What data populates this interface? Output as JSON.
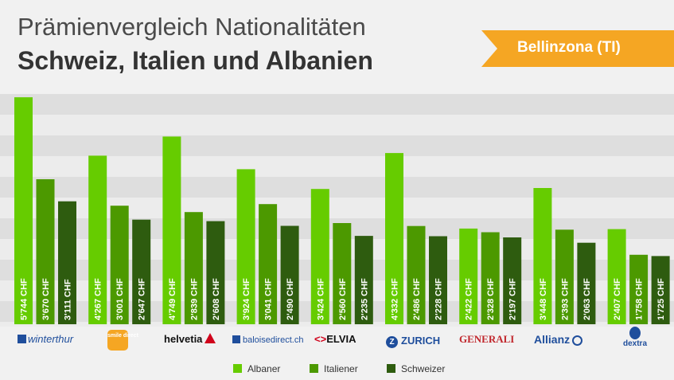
{
  "title_line1": "Prämienvergleich Nationalitäten",
  "title_line2": "Schweiz, Italien und Albanien",
  "badge": "Bellinzona (TI)",
  "colors": {
    "albaner": "#66cc00",
    "italiener": "#4c9900",
    "schweizer": "#2e5c0f",
    "ribbon": "#f5a623"
  },
  "legend": [
    "Albaner",
    "Italiener",
    "Schweizer"
  ],
  "insurers": [
    {
      "name": "winterthur",
      "icon": "winterthur-logo"
    },
    {
      "name": "smile direct",
      "icon": "smile-logo"
    },
    {
      "name": "helvetia",
      "icon": "helvetia-logo"
    },
    {
      "name": "baloisedirect.ch",
      "icon": "baloise-logo"
    },
    {
      "name": "ELVIA",
      "icon": "elvia-logo"
    },
    {
      "name": "ZURICH",
      "icon": "zurich-logo"
    },
    {
      "name": "GENERALI",
      "icon": "generali-logo"
    },
    {
      "name": "Allianz",
      "icon": "allianz-logo"
    },
    {
      "name": "dextra",
      "icon": "dextra-logo"
    }
  ],
  "chart_data": {
    "type": "bar",
    "categories": [
      "winterthur",
      "smile direct",
      "helvetia",
      "baloisedirect.ch",
      "ELVIA",
      "ZURICH",
      "GENERALI",
      "Allianz",
      "dextra"
    ],
    "series": [
      {
        "name": "Albaner",
        "values": [
          5744,
          4267,
          4749,
          3924,
          3424,
          4332,
          2422,
          3448,
          2407
        ],
        "labels": [
          "5'744 CHF",
          "4'267 CHF",
          "4'749 CHF",
          "3'924 CHF",
          "3'424 CHF",
          "4'332 CHF",
          "2'422 CHF",
          "3'448 CHF",
          "2'407 CHF"
        ]
      },
      {
        "name": "Italiener",
        "values": [
          3670,
          3001,
          2839,
          3041,
          2560,
          2486,
          2328,
          2393,
          1758
        ],
        "labels": [
          "3'670 CHF",
          "3'001 CHF",
          "2'839 CHF",
          "3'041 CHF",
          "2'560 CHF",
          "2'486 CHF",
          "2'328 CHF",
          "2'393 CHF",
          "1'758 CHF"
        ]
      },
      {
        "name": "Schweizer",
        "values": [
          3111,
          2647,
          2608,
          2490,
          2235,
          2228,
          2197,
          2063,
          1725
        ],
        "labels": [
          "3'111 CHF",
          "2'647 CHF",
          "2'608 CHF",
          "2'490 CHF",
          "2'235 CHF",
          "2'228 CHF",
          "2'197 CHF",
          "2'063 CHF",
          "1'725 CHF"
        ]
      }
    ],
    "ylim": [
      0,
      6000
    ],
    "grid": true,
    "legend_position": "bottom"
  }
}
